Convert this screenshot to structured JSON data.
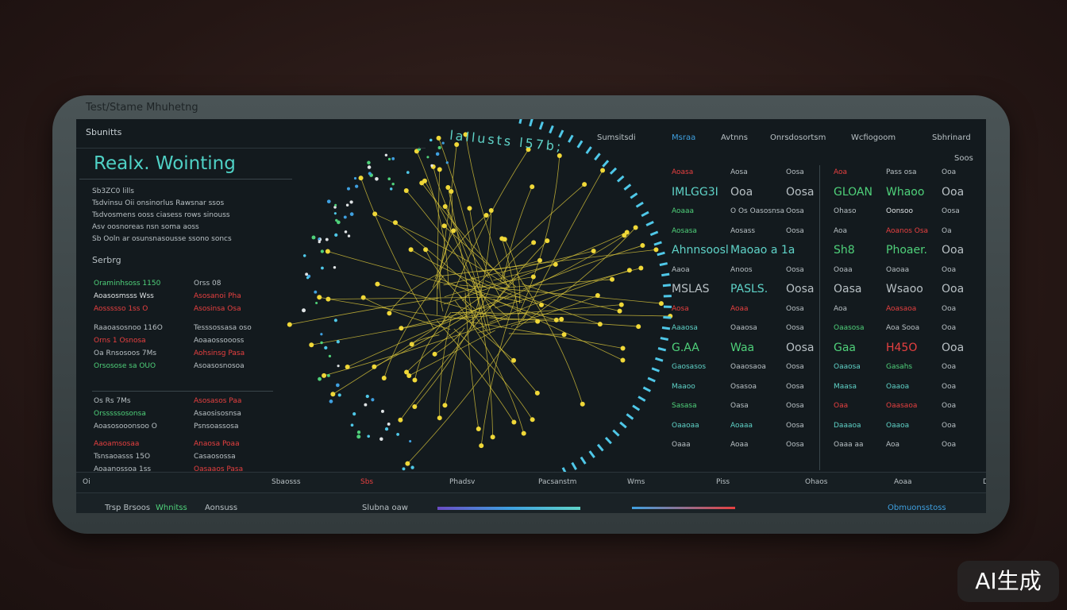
{
  "window_title": "Test/Stame Mhuhetng",
  "sidebar": {
    "label": "Sbunitts",
    "heading": "Realx. Wointing",
    "intro": [
      "Sb3ZC0 lills",
      "Tsdvinsu Oii onsinorlus Rawsnar ssos",
      "Tsdvosmens ooss ciasess rows sinouss",
      "Asv oosnoreas nsn soma aoss",
      "Sb Ooln ar osunsnasousse ssono soncs",
      "Serbrg"
    ],
    "rows": [
      [
        {
          "text": "Oraminhsoss 1150",
          "color": "#4fd17a"
        },
        {
          "text": "Orss 08",
          "color": "#b8c0c4"
        }
      ],
      [
        {
          "text": "Aoasosmsss Wss",
          "color": "#e0e4e6"
        },
        {
          "text": "Asosanoi Pha",
          "color": "#e84040"
        }
      ],
      [
        {
          "text": "Aossssso 1ss O",
          "color": "#e84040"
        },
        {
          "text": "Asosinsa Osa",
          "color": "#e84040"
        }
      ],
      [
        {
          "text": "Raaoasosnoo 116O",
          "color": "#b8c0c4"
        },
        {
          "text": "Tesssossasa oso",
          "color": "#b8c0c4"
        }
      ],
      [
        {
          "text": "Orns 1 Osnosa",
          "color": "#e84040"
        },
        {
          "text": "Aoaaossoooss",
          "color": "#b8c0c4"
        }
      ],
      [
        {
          "text": "Oa Rnsosoos 7Ms",
          "color": "#b8c0c4"
        },
        {
          "text": "Aohsinsg Pasa",
          "color": "#e84040"
        }
      ],
      [
        {
          "text": "Orsosose sa OUO",
          "color": "#4fd17a"
        },
        {
          "text": "Asoasosnosoa",
          "color": "#b8c0c4"
        }
      ],
      [
        {
          "text": "Os Rs 7Ms",
          "color": "#b8c0c4"
        },
        {
          "text": "Asosasos Paa",
          "color": "#e84040"
        }
      ],
      [
        {
          "text": "Orsssssosonsa",
          "color": "#4fd17a"
        },
        {
          "text": "Asaosisosnsa",
          "color": "#b8c0c4"
        }
      ],
      [
        {
          "text": "Aoasosooonsoo O",
          "color": "#b8c0c4"
        },
        {
          "text": "Psnsoassosa",
          "color": "#b8c0c4"
        }
      ],
      [
        {
          "text": "Aaoamsosaa",
          "color": "#e84040"
        },
        {
          "text": "Anaosa Poaa",
          "color": "#e84040"
        }
      ],
      [
        {
          "text": "Tsnsaoasss 15O",
          "color": "#b8c0c4"
        },
        {
          "text": "Casaosossa",
          "color": "#b8c0c4"
        }
      ],
      [
        {
          "text": "Aoaanossoa 1ss",
          "color": "#b8c0c4"
        },
        {
          "text": "Oasaaos Pasa",
          "color": "#e84040"
        }
      ]
    ]
  },
  "ring_label": "lallusts l57b;",
  "nav": [
    "Sumsitsdi",
    "Msraa",
    "Avtnns",
    "Onrsdosortsm",
    "Wcfiogoom",
    "Sbhrinard",
    "Soos"
  ],
  "table": [
    [
      {
        "text": "Aoasa",
        "color": "#e84040"
      },
      {
        "text": "Aosa",
        "color": "#b8c0c4"
      },
      {
        "text": "Oosa",
        "color": "#b8c0c4"
      },
      {
        "text": "Aoa",
        "color": "#e84040"
      },
      {
        "text": "Pass osa",
        "color": "#b8c0c4"
      },
      {
        "text": "Ooa",
        "color": "#b8c0c4"
      }
    ],
    [
      {
        "text": "IMLGG3I",
        "color": "#5fd3c8"
      },
      {
        "text": "Ooa",
        "color": "#b8c0c4"
      },
      {
        "text": "Oosa",
        "color": "#b8c0c4"
      },
      {
        "text": "GLOAN",
        "color": "#4fd17a"
      },
      {
        "text": "Whaoo",
        "color": "#4fd17a"
      },
      {
        "text": "Ooa",
        "color": "#b8c0c4"
      }
    ],
    [
      {
        "text": "Aoaaa",
        "color": "#4fd17a"
      },
      {
        "text": "O Os Oasosnsa",
        "color": "#b8c0c4"
      },
      {
        "text": "Oosa",
        "color": "#b8c0c4"
      },
      {
        "text": "Ohaso",
        "color": "#b8c0c4"
      },
      {
        "text": "Oonsoo",
        "color": "#e0e4e6"
      },
      {
        "text": "Oosa",
        "color": "#b8c0c4"
      }
    ],
    [
      {
        "text": "Aosasa",
        "color": "#4fd17a"
      },
      {
        "text": "Aosass",
        "color": "#b8c0c4"
      },
      {
        "text": "Oosa",
        "color": "#b8c0c4"
      },
      {
        "text": "Aoa",
        "color": "#b8c0c4"
      },
      {
        "text": "Aoanos Osa",
        "color": "#e84040"
      },
      {
        "text": "Oa",
        "color": "#b8c0c4"
      }
    ],
    [
      {
        "text": "Ahnnsoosl",
        "color": "#5fd3c8"
      },
      {
        "text": "Maoao a 1a",
        "color": "#5fd3c8"
      },
      {
        "text": "",
        "color": "#b8c0c4"
      },
      {
        "text": "Sh8",
        "color": "#4fd17a"
      },
      {
        "text": "Phoaer.",
        "color": "#4fd17a"
      },
      {
        "text": "Ooa",
        "color": "#b8c0c4"
      }
    ],
    [
      {
        "text": "Aaoa",
        "color": "#b8c0c4"
      },
      {
        "text": "Anoos",
        "color": "#b8c0c4"
      },
      {
        "text": "Oosa",
        "color": "#b8c0c4"
      },
      {
        "text": "Ooaa",
        "color": "#b8c0c4"
      },
      {
        "text": "Oaoaa",
        "color": "#b8c0c4"
      },
      {
        "text": "Ooa",
        "color": "#b8c0c4"
      }
    ],
    [
      {
        "text": "MSLAS",
        "color": "#b8c0c4"
      },
      {
        "text": "PASLS.",
        "color": "#5fd3c8"
      },
      {
        "text": "Oosa",
        "color": "#b8c0c4"
      },
      {
        "text": "Oasa",
        "color": "#b8c0c4"
      },
      {
        "text": "Wsaoo",
        "color": "#b8c0c4"
      },
      {
        "text": "Ooa",
        "color": "#b8c0c4"
      }
    ],
    [
      {
        "text": "Aosa",
        "color": "#e84040"
      },
      {
        "text": "Aoaa",
        "color": "#e84040"
      },
      {
        "text": "Oosa",
        "color": "#b8c0c4"
      },
      {
        "text": "Aoa",
        "color": "#b8c0c4"
      },
      {
        "text": "Aoasaoa",
        "color": "#e84040"
      },
      {
        "text": "Ooa",
        "color": "#b8c0c4"
      }
    ],
    [
      {
        "text": "Aaaosa",
        "color": "#5fd3c8"
      },
      {
        "text": "Oaaosa",
        "color": "#b8c0c4"
      },
      {
        "text": "Oosa",
        "color": "#b8c0c4"
      },
      {
        "text": "Oaasosa",
        "color": "#4fd17a"
      },
      {
        "text": "Aoa Sooa",
        "color": "#b8c0c4"
      },
      {
        "text": "Ooa",
        "color": "#b8c0c4"
      }
    ],
    [
      {
        "text": "G.AA",
        "color": "#4fd17a"
      },
      {
        "text": "Waa",
        "color": "#4fd17a"
      },
      {
        "text": "Oosa",
        "color": "#b8c0c4"
      },
      {
        "text": "Gaa",
        "color": "#4fd17a"
      },
      {
        "text": "H45O",
        "color": "#e84040"
      },
      {
        "text": "Ooa",
        "color": "#b8c0c4"
      }
    ],
    [
      {
        "text": "Gaosasos",
        "color": "#5fd3c8"
      },
      {
        "text": "Oaaosaoa",
        "color": "#b8c0c4"
      },
      {
        "text": "Oosa",
        "color": "#b8c0c4"
      },
      {
        "text": "Oaaosa",
        "color": "#5fd3c8"
      },
      {
        "text": "Gasahs",
        "color": "#4fd17a"
      },
      {
        "text": "Ooa",
        "color": "#b8c0c4"
      }
    ],
    [
      {
        "text": "Maaoo",
        "color": "#5fd3c8"
      },
      {
        "text": "Osasoa",
        "color": "#b8c0c4"
      },
      {
        "text": "Oosa",
        "color": "#b8c0c4"
      },
      {
        "text": "Maasa",
        "color": "#5fd3c8"
      },
      {
        "text": "Oaaoa",
        "color": "#5fd3c8"
      },
      {
        "text": "Ooa",
        "color": "#b8c0c4"
      }
    ],
    [
      {
        "text": "Sasasa",
        "color": "#4fd17a"
      },
      {
        "text": "Oasa",
        "color": "#b8c0c4"
      },
      {
        "text": "Oosa",
        "color": "#b8c0c4"
      },
      {
        "text": "Oaa",
        "color": "#e84040"
      },
      {
        "text": "Oaasaoa",
        "color": "#e84040"
      },
      {
        "text": "Ooa",
        "color": "#b8c0c4"
      }
    ],
    [
      {
        "text": "Oaaoaa",
        "color": "#5fd3c8"
      },
      {
        "text": "Aoaaa",
        "color": "#5fd3c8"
      },
      {
        "text": "Oosa",
        "color": "#b8c0c4"
      },
      {
        "text": "Daaaoa",
        "color": "#5fd3c8"
      },
      {
        "text": "Oaaoa",
        "color": "#5fd3c8"
      },
      {
        "text": "Ooa",
        "color": "#b8c0c4"
      }
    ],
    [
      {
        "text": "Oaaa",
        "color": "#b8c0c4"
      },
      {
        "text": "Aoaa",
        "color": "#b8c0c4"
      },
      {
        "text": "Oosa",
        "color": "#b8c0c4"
      },
      {
        "text": "Oaaa aa",
        "color": "#b8c0c4"
      },
      {
        "text": "Aoa",
        "color": "#b8c0c4"
      },
      {
        "text": "Ooa",
        "color": "#b8c0c4"
      }
    ]
  ],
  "status_bar": [
    "Oi",
    "Sbaosss",
    "Sbs",
    "Phadsv",
    "Pacsanstm",
    "Wms",
    "Piss",
    "Ohaos",
    "Aoaa",
    "Do"
  ],
  "footer": [
    "Trsp Brsoos",
    "Whnitss",
    "Aonsuss",
    "Slubna oaw",
    "Obmuonsstoss"
  ],
  "badge": "AI生成"
}
